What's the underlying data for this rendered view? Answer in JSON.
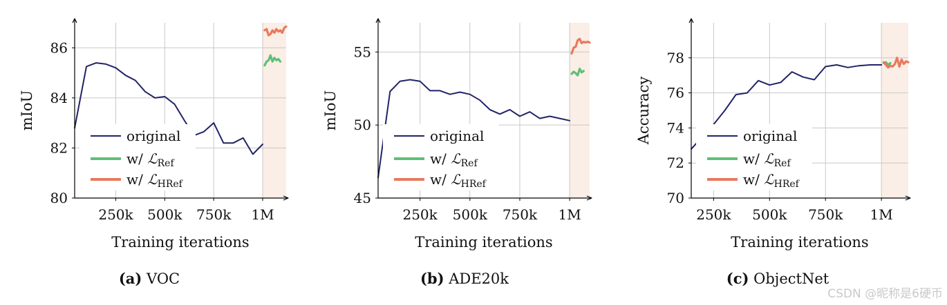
{
  "legend_labels": {
    "original": "original",
    "ref_prefix": "w/ ",
    "ref_main": "ℒ",
    "ref_sub": "Ref",
    "href_prefix": "w/ ",
    "href_main": "ℒ",
    "href_sub": "HRef"
  },
  "colors": {
    "original": "#1f2366",
    "ref": "#5fbf77",
    "href": "#e8795e",
    "shade": "#fbeee6",
    "grid": "#c8c8c8"
  },
  "watermark": "CSDN @昵称是6硬币",
  "chart_data": [
    {
      "type": "line",
      "caption_tag": "(a)",
      "caption_text": "VOC",
      "xlabel": "Training iterations",
      "ylabel": "mIoU",
      "xlim": [
        40000,
        1120000
      ],
      "ylim": [
        80,
        87
      ],
      "xticks": [
        250000,
        500000,
        750000,
        1000000
      ],
      "xtick_labels": [
        "250k",
        "500k",
        "750k",
        "1M"
      ],
      "yticks": [
        80,
        82,
        84,
        86
      ],
      "ytick_labels": [
        "80",
        "82",
        "84",
        "86"
      ],
      "shade_from": 1000000,
      "series": [
        {
          "name": "original",
          "x": [
            40000,
            100000,
            150000,
            200000,
            250000,
            300000,
            350000,
            400000,
            450000,
            500000,
            550000,
            600000,
            650000,
            700000,
            750000,
            800000,
            850000,
            900000,
            950000,
            1000000
          ],
          "y": [
            82.8,
            85.25,
            85.4,
            85.35,
            85.2,
            84.9,
            84.7,
            84.25,
            84.0,
            84.05,
            83.75,
            83.1,
            82.5,
            82.65,
            83.0,
            82.2,
            82.2,
            82.4,
            81.75,
            82.15
          ]
        },
        {
          "name": "w/ LRef",
          "x": [
            1010000,
            1020000,
            1030000,
            1040000,
            1050000,
            1060000,
            1070000,
            1080000,
            1090000
          ],
          "y": [
            85.3,
            85.45,
            85.5,
            85.7,
            85.45,
            85.6,
            85.5,
            85.55,
            85.45
          ]
        },
        {
          "name": "w/ LHRef",
          "x": [
            1010000,
            1020000,
            1030000,
            1040000,
            1050000,
            1060000,
            1070000,
            1080000,
            1090000,
            1100000,
            1110000,
            1120000
          ],
          "y": [
            86.7,
            86.75,
            86.5,
            86.55,
            86.7,
            86.6,
            86.75,
            86.65,
            86.7,
            86.6,
            86.8,
            86.85
          ]
        }
      ]
    },
    {
      "type": "line",
      "caption_tag": "(b)",
      "caption_text": "ADE20k",
      "xlabel": "Training iterations",
      "ylabel": "mIoU",
      "xlim": [
        40000,
        1100000
      ],
      "ylim": [
        45,
        57
      ],
      "xticks": [
        250000,
        500000,
        750000,
        1000000
      ],
      "xtick_labels": [
        "250k",
        "500k",
        "750k",
        "1M"
      ],
      "yticks": [
        45,
        50,
        55
      ],
      "ytick_labels": [
        "45",
        "50",
        "55"
      ],
      "shade_from": 1000000,
      "series": [
        {
          "name": "original",
          "x": [
            40000,
            100000,
            150000,
            200000,
            250000,
            300000,
            350000,
            400000,
            450000,
            500000,
            550000,
            600000,
            650000,
            700000,
            750000,
            800000,
            850000,
            900000,
            950000,
            1000000
          ],
          "y": [
            46.4,
            52.3,
            53.0,
            53.1,
            53.0,
            52.35,
            52.35,
            52.1,
            52.25,
            52.1,
            51.7,
            51.05,
            50.75,
            51.05,
            50.6,
            50.9,
            50.45,
            50.6,
            50.45,
            50.3
          ]
        },
        {
          "name": "w/ LRef",
          "x": [
            1010000,
            1020000,
            1030000,
            1040000,
            1050000,
            1060000,
            1070000
          ],
          "y": [
            53.5,
            53.65,
            53.55,
            53.4,
            53.85,
            53.6,
            53.7
          ]
        },
        {
          "name": "w/ LHRef",
          "x": [
            1010000,
            1020000,
            1030000,
            1040000,
            1050000,
            1060000,
            1070000,
            1080000,
            1090000,
            1100000
          ],
          "y": [
            54.9,
            55.3,
            55.35,
            55.8,
            55.9,
            55.6,
            55.7,
            55.65,
            55.7,
            55.65
          ]
        }
      ]
    },
    {
      "type": "line",
      "caption_tag": "(c)",
      "caption_text": "ObjectNet",
      "xlabel": "Training iterations",
      "ylabel": "Accuracy",
      "xlim": [
        150000,
        1120000
      ],
      "ylim": [
        70,
        80
      ],
      "xticks": [
        250000,
        500000,
        750000,
        1000000
      ],
      "xtick_labels": [
        "250k",
        "500k",
        "750k",
        "1M"
      ],
      "yticks": [
        70,
        72,
        74,
        76,
        78
      ],
      "ytick_labels": [
        "70",
        "72",
        "74",
        "76",
        "78"
      ],
      "shade_from": 1000000,
      "series": [
        {
          "name": "original",
          "x": [
            150000,
            200000,
            250000,
            300000,
            350000,
            400000,
            450000,
            500000,
            550000,
            600000,
            650000,
            700000,
            750000,
            800000,
            850000,
            900000,
            950000,
            1000000
          ],
          "y": [
            72.8,
            73.5,
            74.2,
            75.0,
            75.9,
            76.0,
            76.7,
            76.45,
            76.6,
            77.2,
            76.9,
            76.75,
            77.5,
            77.6,
            77.45,
            77.55,
            77.6,
            77.6
          ]
        },
        {
          "name": "w/ LRef",
          "x": [
            1010000,
            1020000,
            1030000,
            1040000
          ],
          "y": [
            77.7,
            77.75,
            77.6,
            77.7
          ]
        },
        {
          "name": "w/ LHRef",
          "x": [
            1010000,
            1020000,
            1030000,
            1040000,
            1050000,
            1060000,
            1070000,
            1080000,
            1090000,
            1100000,
            1110000,
            1120000
          ],
          "y": [
            77.75,
            77.6,
            77.45,
            77.55,
            77.5,
            77.65,
            78.0,
            77.5,
            77.9,
            77.65,
            77.8,
            77.75
          ]
        }
      ]
    }
  ]
}
